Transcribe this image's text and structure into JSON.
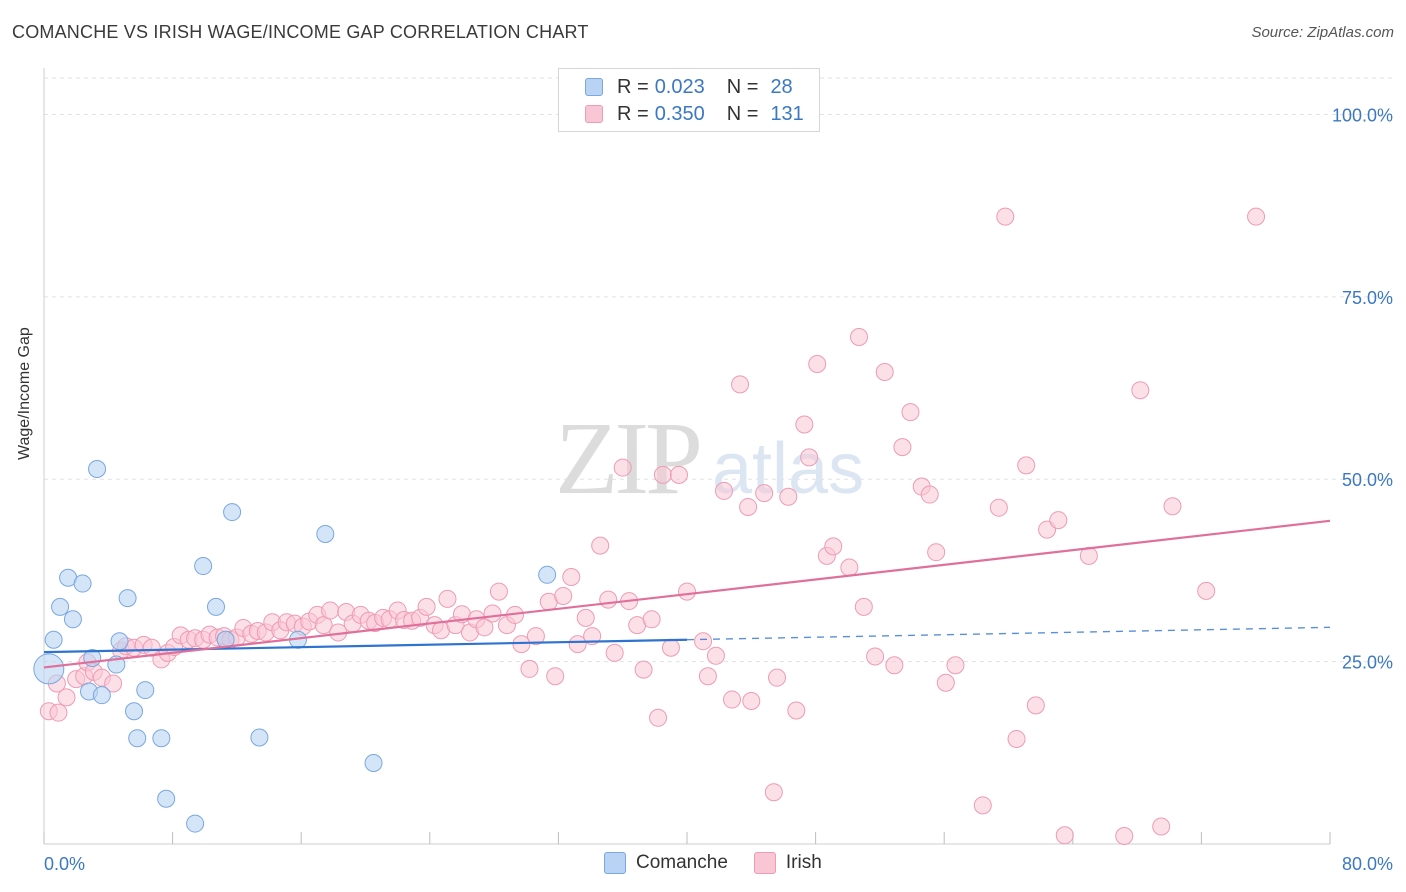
{
  "title": "COMANCHE VS IRISH WAGE/INCOME GAP CORRELATION CHART",
  "source": "Source: ZipAtlas.com",
  "watermark": {
    "zip": "ZIP",
    "atlas": "atlas"
  },
  "legend": {
    "rows": [
      {
        "r_label": "R =",
        "r_value": "0.023",
        "n_label": "N =",
        "n_value": "28"
      },
      {
        "r_label": "R =",
        "r_value": "0.350",
        "n_label": "N =",
        "n_value": "131"
      }
    ]
  },
  "chart_data": {
    "type": "scatter",
    "title": "COMANCHE VS IRISH WAGE/INCOME GAP CORRELATION CHART",
    "xlabel": "",
    "ylabel": "Wage/Income Gap",
    "xlim": [
      0,
      80
    ],
    "ylim": [
      0,
      105
    ],
    "x_tick_labels": [
      "0.0%",
      "80.0%"
    ],
    "y_tick_values": [
      25,
      50,
      75,
      100
    ],
    "y_tick_labels": [
      "25.0%",
      "50.0%",
      "75.0%",
      "100.0%"
    ],
    "colors": {
      "comanche_fill": "#b8d3f3",
      "comanche_stroke": "#7aa7de",
      "comanche_line": "#2f73d0",
      "irish_fill": "#f9c6d6",
      "irish_stroke": "#ee9bb5",
      "irish_line": "#e0709a",
      "tick_label": "#3b78c4"
    },
    "series": [
      {
        "name": "Comanche",
        "R": 0.023,
        "N": 28,
        "trend": {
          "x0": 0,
          "y0": 26.3,
          "x1": 40,
          "y1": 28.0,
          "dash_to_x": 80,
          "dash_to_y": 29.7
        },
        "points": [
          [
            0.6,
            28
          ],
          [
            1,
            32.5
          ],
          [
            1.5,
            36.5
          ],
          [
            1.8,
            30.8
          ],
          [
            2.4,
            35.7
          ],
          [
            2.8,
            20.9
          ],
          [
            3.3,
            51.4
          ],
          [
            3.6,
            20.4
          ],
          [
            4.5,
            24.6
          ],
          [
            4.7,
            27.8
          ],
          [
            5.2,
            33.7
          ],
          [
            5.6,
            18.2
          ],
          [
            5.8,
            14.5
          ],
          [
            6.3,
            21.1
          ],
          [
            7.3,
            14.5
          ],
          [
            7.6,
            6.2
          ],
          [
            9.4,
            2.8
          ],
          [
            9.9,
            38.1
          ],
          [
            10.7,
            32.5
          ],
          [
            11.3,
            28.0
          ],
          [
            11.7,
            45.5
          ],
          [
            13.4,
            14.6
          ],
          [
            15.8,
            28.0
          ],
          [
            17.5,
            42.5
          ],
          [
            20.5,
            11.1
          ],
          [
            31.3,
            36.9
          ],
          [
            3.0,
            25.5
          ],
          [
            0.3,
            24.0
          ]
        ]
      },
      {
        "name": "Irish",
        "R": 0.35,
        "N": 131,
        "trend": {
          "x0": 0,
          "y0": 24.2,
          "x1": 80,
          "y1": 44.3
        },
        "points": [
          [
            0.3,
            18.2
          ],
          [
            0.8,
            22.0
          ],
          [
            1.4,
            20.1
          ],
          [
            2.0,
            22.6
          ],
          [
            2.5,
            23.0
          ],
          [
            2.7,
            24.9
          ],
          [
            3.1,
            23.6
          ],
          [
            3.6,
            22.8
          ],
          [
            4.3,
            22.0
          ],
          [
            4.8,
            26.5
          ],
          [
            5.1,
            27.1
          ],
          [
            5.6,
            26.9
          ],
          [
            6.2,
            27.3
          ],
          [
            6.7,
            26.9
          ],
          [
            7.3,
            25.3
          ],
          [
            7.7,
            26.2
          ],
          [
            8.1,
            27.0
          ],
          [
            8.5,
            28.6
          ],
          [
            9.0,
            28.0
          ],
          [
            9.4,
            28.2
          ],
          [
            9.9,
            28.0
          ],
          [
            10.3,
            28.7
          ],
          [
            10.8,
            28.3
          ],
          [
            11.2,
            28.5
          ],
          [
            11.6,
            28.0
          ],
          [
            12.0,
            28.3
          ],
          [
            12.4,
            29.6
          ],
          [
            12.9,
            28.8
          ],
          [
            13.3,
            29.2
          ],
          [
            13.8,
            29.0
          ],
          [
            14.2,
            30.4
          ],
          [
            14.7,
            29.3
          ],
          [
            15.1,
            30.4
          ],
          [
            15.6,
            30.2
          ],
          [
            16.1,
            29.8
          ],
          [
            16.5,
            30.5
          ],
          [
            17.0,
            31.4
          ],
          [
            17.4,
            30.0
          ],
          [
            17.8,
            32.0
          ],
          [
            18.3,
            29.0
          ],
          [
            18.8,
            31.8
          ],
          [
            19.2,
            30.2
          ],
          [
            19.7,
            31.4
          ],
          [
            20.2,
            30.6
          ],
          [
            20.6,
            30.3
          ],
          [
            21.1,
            31.0
          ],
          [
            21.5,
            30.8
          ],
          [
            22.0,
            32.0
          ],
          [
            22.4,
            30.7
          ],
          [
            22.9,
            30.6
          ],
          [
            23.4,
            31.0
          ],
          [
            23.8,
            32.5
          ],
          [
            24.3,
            30.0
          ],
          [
            24.7,
            29.3
          ],
          [
            25.1,
            33.6
          ],
          [
            25.6,
            30.0
          ],
          [
            26.0,
            31.5
          ],
          [
            26.5,
            29.0
          ],
          [
            26.9,
            30.8
          ],
          [
            27.4,
            29.7
          ],
          [
            27.9,
            31.6
          ],
          [
            28.3,
            34.6
          ],
          [
            28.8,
            30.0
          ],
          [
            29.3,
            31.4
          ],
          [
            29.7,
            27.4
          ],
          [
            30.2,
            24.0
          ],
          [
            30.6,
            28.5
          ],
          [
            31.4,
            33.2
          ],
          [
            31.8,
            23.0
          ],
          [
            32.3,
            34.0
          ],
          [
            32.8,
            36.6
          ],
          [
            33.2,
            27.4
          ],
          [
            33.7,
            31.0
          ],
          [
            34.1,
            28.5
          ],
          [
            34.6,
            40.9
          ],
          [
            35.1,
            33.5
          ],
          [
            35.5,
            26.2
          ],
          [
            36.0,
            51.6
          ],
          [
            36.4,
            33.3
          ],
          [
            36.9,
            30.0
          ],
          [
            37.3,
            23.9
          ],
          [
            37.8,
            30.8
          ],
          [
            38.2,
            17.3
          ],
          [
            38.5,
            50.6
          ],
          [
            39.0,
            26.9
          ],
          [
            39.5,
            50.6
          ],
          [
            40.0,
            34.6
          ],
          [
            41.0,
            27.8
          ],
          [
            41.3,
            23.0
          ],
          [
            41.8,
            25.8
          ],
          [
            42.3,
            48.4
          ],
          [
            42.8,
            19.8
          ],
          [
            43.3,
            63.0
          ],
          [
            43.8,
            46.2
          ],
          [
            44.0,
            19.6
          ],
          [
            44.8,
            48.1
          ],
          [
            45.4,
            7.1
          ],
          [
            45.6,
            22.8
          ],
          [
            46.3,
            47.6
          ],
          [
            46.8,
            18.3
          ],
          [
            47.3,
            57.5
          ],
          [
            47.6,
            53.0
          ],
          [
            48.1,
            65.8
          ],
          [
            48.7,
            39.5
          ],
          [
            49.1,
            40.8
          ],
          [
            50.1,
            37.9
          ],
          [
            50.7,
            69.5
          ],
          [
            51.0,
            32.5
          ],
          [
            51.7,
            25.7
          ],
          [
            52.3,
            64.7
          ],
          [
            52.9,
            24.5
          ],
          [
            53.4,
            54.4
          ],
          [
            53.9,
            59.2
          ],
          [
            54.6,
            49.0
          ],
          [
            55.1,
            47.9
          ],
          [
            55.5,
            40.0
          ],
          [
            56.1,
            22.1
          ],
          [
            56.7,
            24.5
          ],
          [
            58.4,
            5.3
          ],
          [
            59.4,
            46.1
          ],
          [
            59.8,
            86.0
          ],
          [
            60.5,
            14.4
          ],
          [
            61.1,
            51.9
          ],
          [
            61.7,
            19.0
          ],
          [
            62.4,
            43.1
          ],
          [
            63.1,
            44.4
          ],
          [
            63.5,
            1.2
          ],
          [
            65.0,
            39.5
          ],
          [
            67.2,
            1.1
          ],
          [
            68.2,
            62.2
          ],
          [
            69.5,
            2.4
          ],
          [
            70.2,
            46.3
          ],
          [
            72.3,
            34.7
          ],
          [
            75.4,
            86.0
          ],
          [
            0.9,
            18.0
          ]
        ]
      }
    ]
  }
}
